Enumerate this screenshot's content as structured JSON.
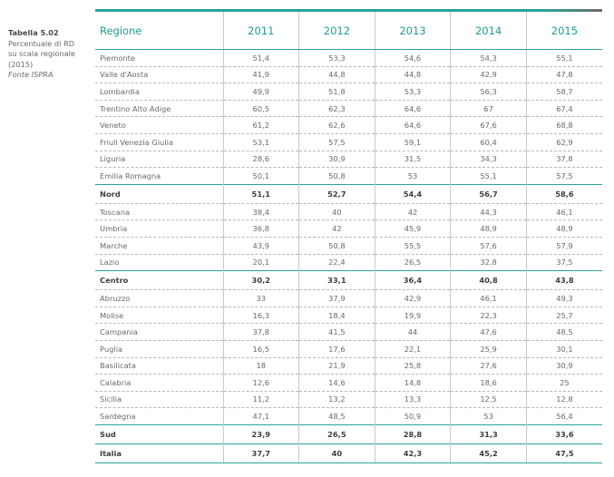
{
  "caption": {
    "title": "Tabella 5.02",
    "line1": "Percentuale di RD",
    "line2": "su scala regionale",
    "line3": "(2015)",
    "source": "Fonte ISPRA"
  },
  "table": {
    "columns": [
      "Regione",
      "2011",
      "2012",
      "2013",
      "2014",
      "2015"
    ],
    "rows": [
      {
        "cells": [
          "Piemonte",
          "51,4",
          "53,3",
          "54,6",
          "54,3",
          "55,1"
        ]
      },
      {
        "cells": [
          "Valle d'Aosta",
          "41,9",
          "44,8",
          "44,8",
          "42,9",
          "47,8"
        ]
      },
      {
        "cells": [
          "Lombardia",
          "49,9",
          "51,8",
          "53,3",
          "56,3",
          "58,7"
        ]
      },
      {
        "cells": [
          "Trentino Alto Adige",
          "60,5",
          "62,3",
          "64,6",
          "67",
          "67,4"
        ]
      },
      {
        "cells": [
          "Veneto",
          "61,2",
          "62,6",
          "64,6",
          "67,6",
          "68,8"
        ]
      },
      {
        "cells": [
          "Friuli Venezia Giulia",
          "53,1",
          "57,5",
          "59,1",
          "60,4",
          "62,9"
        ]
      },
      {
        "cells": [
          "Liguria",
          "28,6",
          "30,9",
          "31,5",
          "34,3",
          "37,8"
        ]
      },
      {
        "cells": [
          "Emilia Romagna",
          "50,1",
          "50,8",
          "53",
          "55,1",
          "57,5"
        ]
      },
      {
        "cells": [
          "Nord",
          "51,1",
          "52,7",
          "54,4",
          "56,7",
          "58,6"
        ]
      },
      {
        "cells": [
          "Toscana",
          "38,4",
          "40",
          "42",
          "44,3",
          "46,1"
        ]
      },
      {
        "cells": [
          "Umbria",
          "36,8",
          "42",
          "45,9",
          "48,9",
          "48,9"
        ]
      },
      {
        "cells": [
          "Marche",
          "43,9",
          "50,8",
          "55,5",
          "57,6",
          "57,9"
        ]
      },
      {
        "cells": [
          "Lazio",
          "20,1",
          "22,4",
          "26,5",
          "32,8",
          "37,5"
        ]
      },
      {
        "cells": [
          "Centro",
          "30,2",
          "33,1",
          "36,4",
          "40,8",
          "43,8"
        ]
      },
      {
        "cells": [
          "Abruzzo",
          "33",
          "37,9",
          "42,9",
          "46,1",
          "49,3"
        ]
      },
      {
        "cells": [
          "Molise",
          "16,3",
          "18,4",
          "19,9",
          "22,3",
          "25,7"
        ]
      },
      {
        "cells": [
          "Campania",
          "37,8",
          "41,5",
          "44",
          "47,6",
          "48,5"
        ]
      },
      {
        "cells": [
          "Puglia",
          "16,5",
          "17,6",
          "22,1",
          "25,9",
          "30,1"
        ]
      },
      {
        "cells": [
          "Basilicata",
          "18",
          "21,9",
          "25,8",
          "27,6",
          "30,9"
        ]
      },
      {
        "cells": [
          "Calabria",
          "12,6",
          "14,6",
          "14,8",
          "18,6",
          "25"
        ]
      },
      {
        "cells": [
          "Sicilia",
          "11,2",
          "13,2",
          "13,3",
          "12,5",
          "12,8"
        ]
      },
      {
        "cells": [
          "Sardegna",
          "47,1",
          "48,5",
          "50,9",
          "53",
          "56,4"
        ]
      },
      {
        "cells": [
          "Sud",
          "23,9",
          "26,5",
          "28,8",
          "31,3",
          "33,6"
        ]
      },
      {
        "cells": [
          "Italia",
          "37,7",
          "40",
          "42,3",
          "45,2",
          "47,5"
        ]
      }
    ]
  }
}
